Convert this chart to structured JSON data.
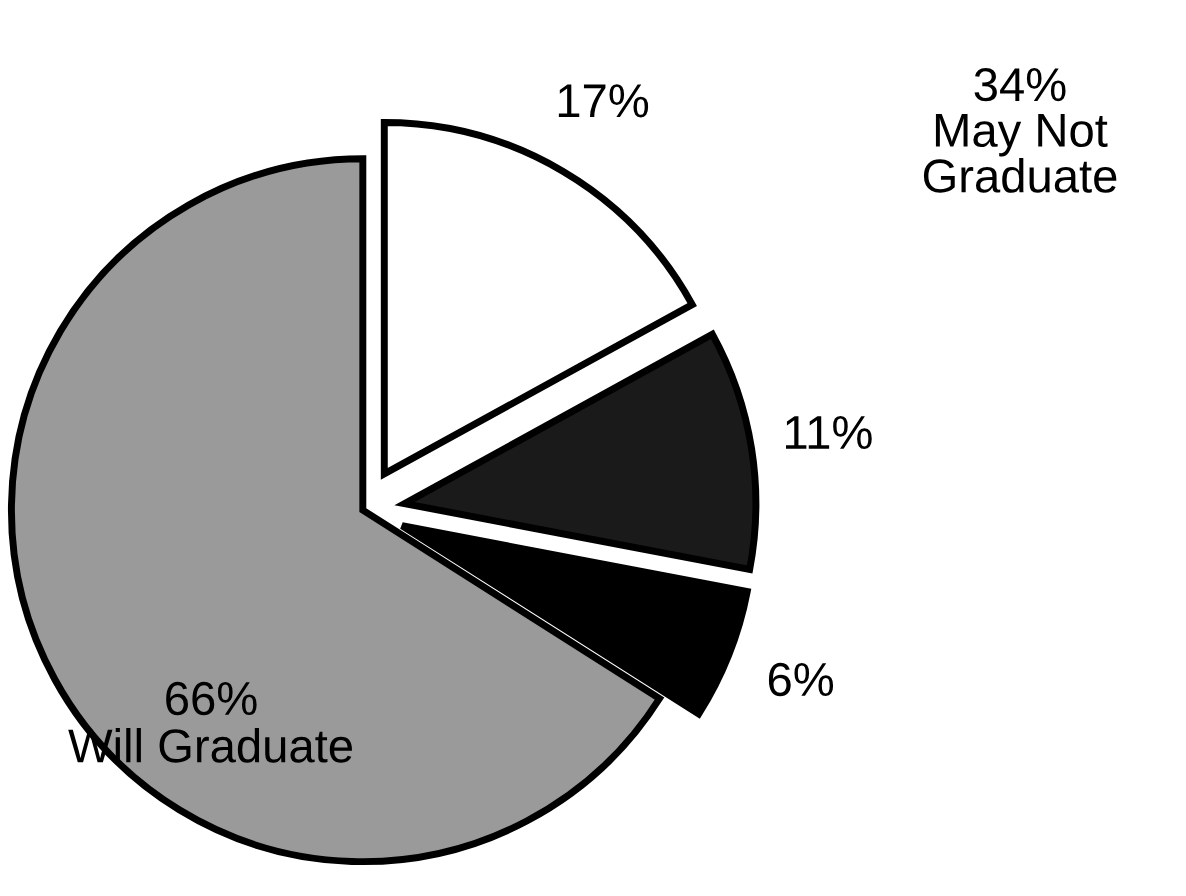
{
  "chart_data": {
    "type": "pie",
    "categories": [
      null,
      null,
      null,
      "Will Graduate"
    ],
    "values": [
      17,
      11,
      6,
      66
    ],
    "value_labels": [
      "17%",
      "11%",
      "6%",
      "66%"
    ],
    "colors": [
      "#ffffff",
      "#1a1a1a",
      "#000000",
      "#9a9a9a"
    ],
    "annotations": [
      "34%\nMay Not\nGraduate"
    ],
    "legend": false
  }
}
